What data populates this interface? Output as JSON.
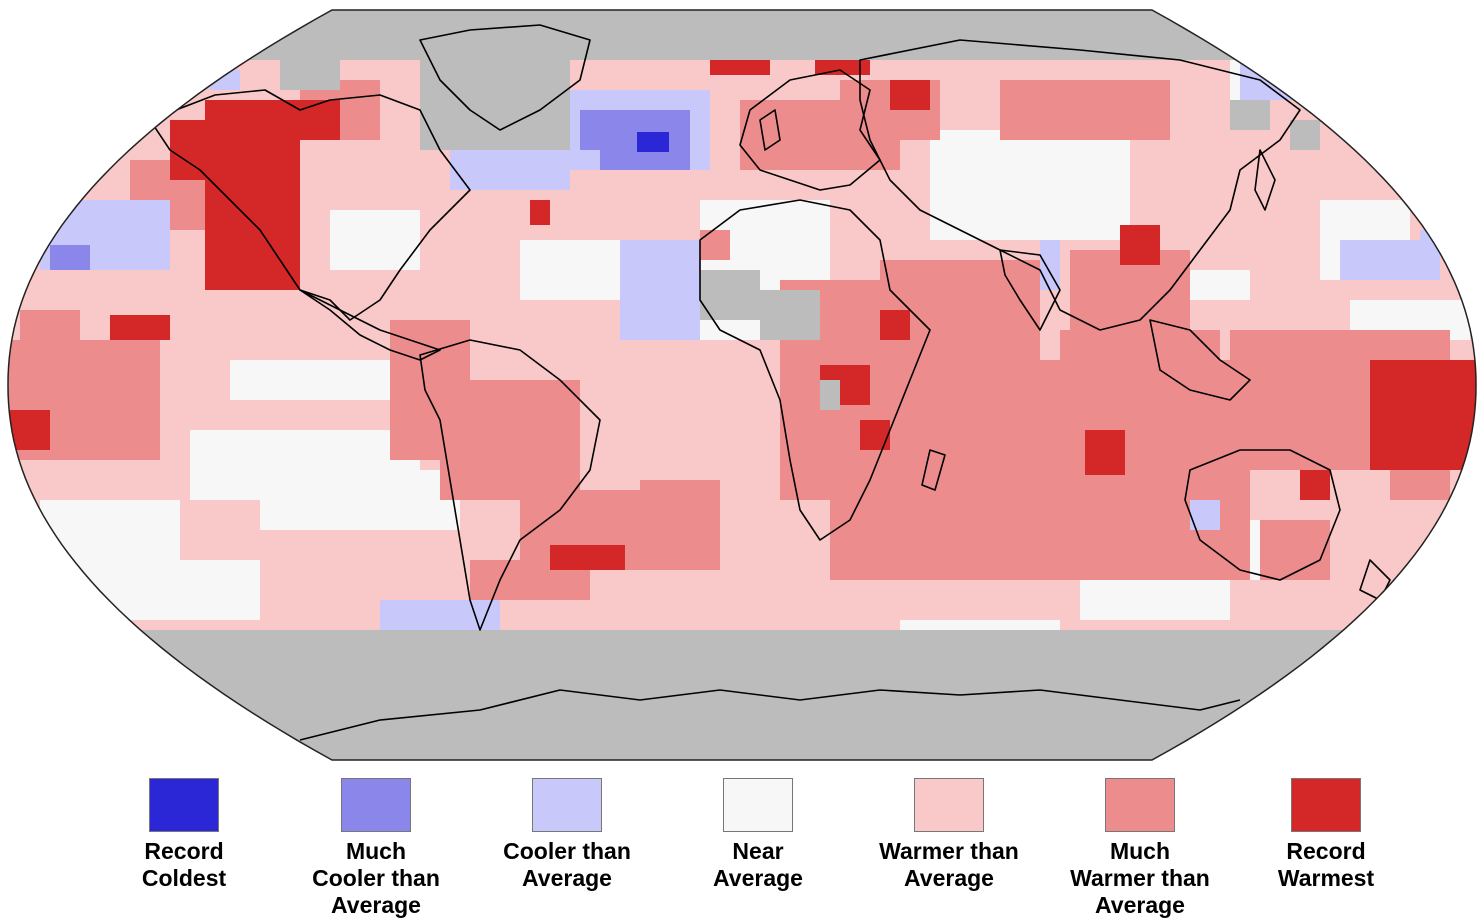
{
  "map": {
    "projection": "Robinson",
    "background_color": "#bcbcbc",
    "land_outline_color": "#000000",
    "categories": {
      "record_coldest": "#2b27d6",
      "much_cooler": "#8b87ea",
      "cooler": "#c9c8fb",
      "near": "#f7f7f7",
      "warmer": "#f9c9c9",
      "much_warmer": "#ec8c8c",
      "record_warmest": "#d42727",
      "no_data": "#bcbcbc"
    }
  },
  "legend": {
    "items": [
      {
        "key": "record_coldest",
        "label": "Record\nColdest",
        "color": "#2b27d6"
      },
      {
        "key": "much_cooler",
        "label": "Much\nCooler than\nAverage",
        "color": "#8b87ea"
      },
      {
        "key": "cooler",
        "label": "Cooler than\nAverage",
        "color": "#c9c8fb"
      },
      {
        "key": "near",
        "label": "Near\nAverage",
        "color": "#f7f7f7"
      },
      {
        "key": "warmer",
        "label": "Warmer than\nAverage",
        "color": "#f9c9c9"
      },
      {
        "key": "much_warmer",
        "label": "Much\nWarmer than\nAverage",
        "color": "#ec8c8c"
      },
      {
        "key": "record_warmest",
        "label": "Record\nWarmest",
        "color": "#d42727"
      }
    ]
  }
}
